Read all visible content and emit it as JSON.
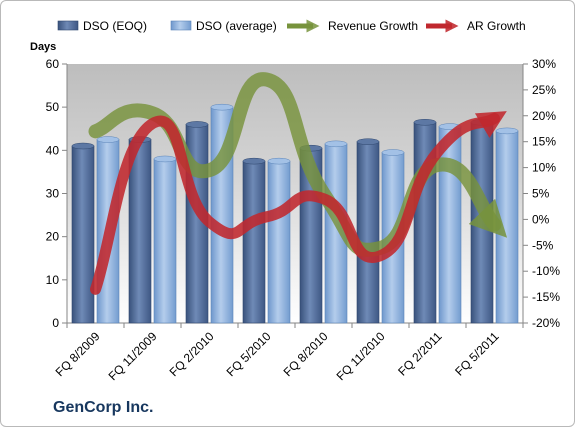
{
  "company": "GenCorp Inc.",
  "chart_data": {
    "type": "bar",
    "title": "",
    "categories": [
      "FQ 8/2009",
      "FQ 11/2009",
      "FQ 2/2010",
      "FQ 5/2010",
      "FQ 8/2010",
      "FQ 11/2010",
      "FQ 2/2011",
      "FQ 5/2011"
    ],
    "y_left": {
      "label": "Days",
      "min": 0,
      "max": 60,
      "ticks": [
        "0",
        "10",
        "20",
        "30",
        "40",
        "50",
        "60"
      ]
    },
    "y_right": {
      "min": -20,
      "max": 30,
      "ticks": [
        "-20%",
        "-15%",
        "-10%",
        "-5%",
        "0%",
        "5%",
        "10%",
        "15%",
        "20%",
        "25%",
        "30%"
      ]
    },
    "legend_position": "top",
    "series": [
      {
        "name": "DSO (EOQ)",
        "kind": "bar",
        "axis": "left",
        "color": "#4f6a95",
        "values": [
          41,
          42.5,
          46,
          37.5,
          40.5,
          42,
          46.5,
          46.5
        ]
      },
      {
        "name": "DSO (average)",
        "kind": "bar",
        "axis": "left",
        "color": "#8db3e2",
        "values": [
          42.5,
          38,
          50,
          37.5,
          41.5,
          39.5,
          45.5,
          44.5
        ]
      },
      {
        "name": "Revenue Growth",
        "kind": "arrow-line",
        "axis": "right",
        "color": "#77933c",
        "values": [
          17,
          20.5,
          9.5,
          27,
          5,
          -5.5,
          10.5,
          -1
        ]
      },
      {
        "name": "AR Growth",
        "kind": "arrow-line",
        "axis": "right",
        "color": "#c0282e",
        "values": [
          -13.5,
          18.5,
          -0.5,
          0.5,
          4,
          -7,
          13,
          19.5
        ]
      }
    ],
    "grid": false
  }
}
